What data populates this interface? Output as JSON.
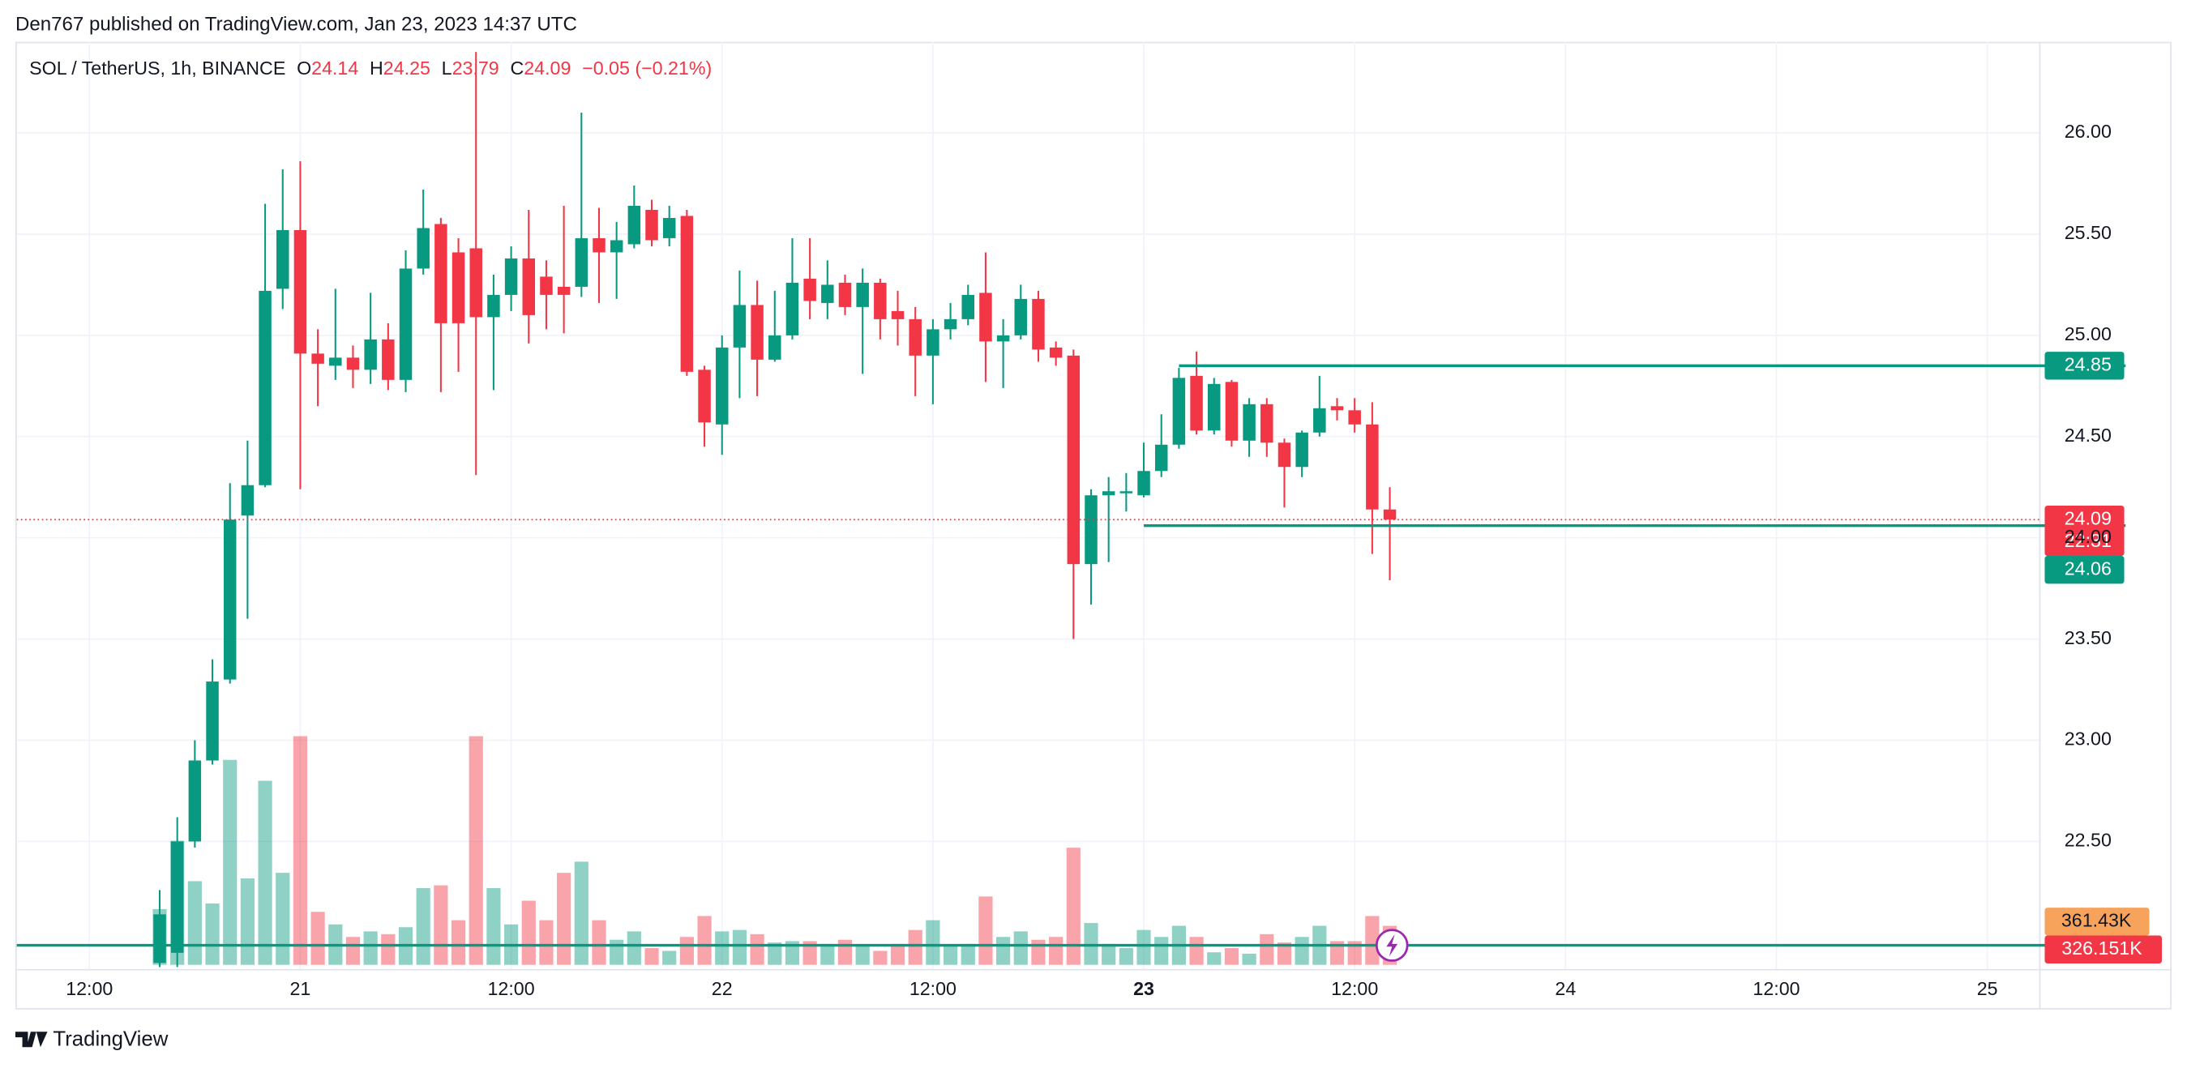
{
  "header": "Den767 published on TradingView.com, Jan 23, 2023 14:37 UTC",
  "footer": "TradingView",
  "chart_data": {
    "type": "candlestick",
    "title": "SOL / TetherUS, 1h, BINANCE",
    "ohlc_labels": [
      "O",
      "H",
      "L",
      "C"
    ],
    "change": "−0.05 (−0.21%)",
    "countdown": "22:31",
    "up_color": "#089981",
    "down_color": "#f23645",
    "grid": true,
    "x": [
      "2023-01-20T16:00",
      "2023-01-20T17:00",
      "2023-01-20T18:00",
      "2023-01-20T19:00",
      "2023-01-20T20:00",
      "2023-01-20T21:00",
      "2023-01-20T22:00",
      "2023-01-20T23:00",
      "2023-01-21T00:00",
      "2023-01-21T01:00",
      "2023-01-21T02:00",
      "2023-01-21T03:00",
      "2023-01-21T04:00",
      "2023-01-21T05:00",
      "2023-01-21T06:00",
      "2023-01-21T07:00",
      "2023-01-21T08:00",
      "2023-01-21T09:00",
      "2023-01-21T10:00",
      "2023-01-21T11:00",
      "2023-01-21T12:00",
      "2023-01-21T13:00",
      "2023-01-21T14:00",
      "2023-01-21T15:00",
      "2023-01-21T16:00",
      "2023-01-21T17:00",
      "2023-01-21T18:00",
      "2023-01-21T19:00",
      "2023-01-21T20:00",
      "2023-01-21T21:00",
      "2023-01-21T22:00",
      "2023-01-21T23:00",
      "2023-01-22T00:00",
      "2023-01-22T01:00",
      "2023-01-22T02:00",
      "2023-01-22T03:00",
      "2023-01-22T04:00",
      "2023-01-22T05:00",
      "2023-01-22T06:00",
      "2023-01-22T07:00",
      "2023-01-22T08:00",
      "2023-01-22T09:00",
      "2023-01-22T10:00",
      "2023-01-22T11:00",
      "2023-01-22T12:00",
      "2023-01-22T13:00",
      "2023-01-22T14:00",
      "2023-01-22T15:00",
      "2023-01-22T16:00",
      "2023-01-22T17:00",
      "2023-01-22T18:00",
      "2023-01-22T19:00",
      "2023-01-22T20:00",
      "2023-01-22T21:00",
      "2023-01-22T22:00",
      "2023-01-22T23:00",
      "2023-01-23T00:00",
      "2023-01-23T01:00",
      "2023-01-23T02:00",
      "2023-01-23T03:00",
      "2023-01-23T04:00",
      "2023-01-23T05:00",
      "2023-01-23T06:00",
      "2023-01-23T07:00",
      "2023-01-23T08:00",
      "2023-01-23T09:00",
      "2023-01-23T10:00",
      "2023-01-23T11:00",
      "2023-01-23T12:00",
      "2023-01-23T13:00",
      "2023-01-23T14:00"
    ],
    "open": [
      21.9,
      21.95,
      22.5,
      22.9,
      23.3,
      24.11,
      24.26,
      25.23,
      25.52,
      24.91,
      24.85,
      24.89,
      24.83,
      24.98,
      24.78,
      25.33,
      25.55,
      25.41,
      25.43,
      25.09,
      25.2,
      25.38,
      25.29,
      25.24,
      25.24,
      25.48,
      25.41,
      25.45,
      25.62,
      25.48,
      25.59,
      24.83,
      24.56,
      24.94,
      25.15,
      24.88,
      25.0,
      25.28,
      25.16,
      25.26,
      25.14,
      25.26,
      25.12,
      25.08,
      24.9,
      25.03,
      25.08,
      25.21,
      24.97,
      25.0,
      25.18,
      24.94,
      24.9,
      23.87,
      24.21,
      24.22,
      24.21,
      24.33,
      24.46,
      24.8,
      24.53,
      24.77,
      24.48,
      24.66,
      24.47,
      24.35,
      24.52,
      24.65,
      24.63,
      24.56,
      24.14
    ],
    "high": [
      22.26,
      22.62,
      23.0,
      23.4,
      24.27,
      24.48,
      25.65,
      25.82,
      25.86,
      25.03,
      25.23,
      24.95,
      25.21,
      25.06,
      25.42,
      25.72,
      25.58,
      25.48,
      26.4,
      25.3,
      25.44,
      25.62,
      25.37,
      25.64,
      26.1,
      25.63,
      25.56,
      25.74,
      25.67,
      25.64,
      25.62,
      24.85,
      25.0,
      25.32,
      25.27,
      25.22,
      25.48,
      25.48,
      25.37,
      25.3,
      25.33,
      25.28,
      25.22,
      25.14,
      25.08,
      25.16,
      25.25,
      25.41,
      25.08,
      25.25,
      25.22,
      24.97,
      24.93,
      24.24,
      24.3,
      24.32,
      24.47,
      24.61,
      24.84,
      24.92,
      24.79,
      24.78,
      24.69,
      24.69,
      24.49,
      24.53,
      24.8,
      24.69,
      24.69,
      24.67,
      24.25
    ],
    "low": [
      21.88,
      21.88,
      22.47,
      22.88,
      23.28,
      23.6,
      24.25,
      25.13,
      24.24,
      24.65,
      24.78,
      24.74,
      24.76,
      24.73,
      24.72,
      25.3,
      24.72,
      24.82,
      24.31,
      24.73,
      25.12,
      24.96,
      25.03,
      25.01,
      25.19,
      25.16,
      25.18,
      25.43,
      25.44,
      25.44,
      24.8,
      24.45,
      24.41,
      24.69,
      24.7,
      24.87,
      24.98,
      25.08,
      25.08,
      25.1,
      24.81,
      24.98,
      24.95,
      24.7,
      24.66,
      24.98,
      25.05,
      24.77,
      24.74,
      24.98,
      24.87,
      24.85,
      23.5,
      23.67,
      23.88,
      24.13,
      24.2,
      24.3,
      24.44,
      24.51,
      24.51,
      24.45,
      24.4,
      24.4,
      24.15,
      24.3,
      24.5,
      24.58,
      24.52,
      23.92,
      23.79
    ],
    "close": [
      22.14,
      22.5,
      22.9,
      23.29,
      24.09,
      24.26,
      25.22,
      25.52,
      24.91,
      24.86,
      24.89,
      24.83,
      24.98,
      24.78,
      25.33,
      25.53,
      25.06,
      25.06,
      25.09,
      25.2,
      25.38,
      25.1,
      25.2,
      25.2,
      25.48,
      25.41,
      25.47,
      25.64,
      25.47,
      25.58,
      24.82,
      24.57,
      24.94,
      25.15,
      24.88,
      25.0,
      25.26,
      25.17,
      25.25,
      25.14,
      25.26,
      25.08,
      25.08,
      24.9,
      25.03,
      25.08,
      25.2,
      24.97,
      25.0,
      25.18,
      24.93,
      24.89,
      23.87,
      24.21,
      24.23,
      24.23,
      24.33,
      24.46,
      24.79,
      24.53,
      24.76,
      24.48,
      24.66,
      24.47,
      24.35,
      24.52,
      24.64,
      24.63,
      24.56,
      24.14,
      24.09
    ],
    "volume": [
      466400,
      1037700,
      699600,
      513000,
      1714000,
      722900,
      1539100,
      769600,
      1912200,
      443100,
      338100,
      233200,
      279800,
      256500,
      314800,
      641300,
      664600,
      373100,
      1912200,
      641300,
      338100,
      536400,
      373100,
      769600,
      862800,
      373100,
      209900,
      279800,
      139900,
      116600,
      233200,
      408100,
      279800,
      291500,
      256500,
      186600,
      198200,
      198200,
      174900,
      209900,
      163200,
      116600,
      174900,
      291500,
      373100,
      163200,
      174900,
      571300,
      233200,
      279800,
      209900,
      233200,
      979400,
      349800,
      174900,
      139900,
      291500,
      233200,
      326500,
      233200,
      104900,
      139900,
      93300,
      256500,
      186600,
      233200,
      326500,
      198200,
      198200,
      408100,
      326151
    ],
    "volume_last_label": {
      "value": 326151,
      "label": "326.151K"
    },
    "volume_ma": {
      "value": 361430,
      "label": "361.43K",
      "color": "#f7a35c"
    },
    "vlim": [
      0,
      7719000
    ],
    "ylim": [
      21.87,
      26.45
    ],
    "yticks": [
      {
        "value": 22.5,
        "label": "22.50"
      },
      {
        "value": 23,
        "label": "23.00"
      },
      {
        "value": 23.5,
        "label": "23.50"
      },
      {
        "value": 24,
        "label": "24.00"
      },
      {
        "value": 24.5,
        "label": "24.50"
      },
      {
        "value": 25,
        "label": "25.00"
      },
      {
        "value": 25.5,
        "label": "25.50"
      },
      {
        "value": 26,
        "label": "26.00"
      }
    ],
    "xlim": [
      "2023-01-20T07:52",
      "2023-01-25T02:57"
    ],
    "xticks": [
      {
        "value": "2023-01-20T12:00",
        "label": "12:00"
      },
      {
        "value": "2023-01-21T00:00",
        "label": "21"
      },
      {
        "value": "2023-01-21T12:00",
        "label": "12:00"
      },
      {
        "value": "2023-01-22T00:00",
        "label": "22"
      },
      {
        "value": "2023-01-22T12:00",
        "label": "12:00"
      },
      {
        "value": "2023-01-23T00:00",
        "label": "23"
      },
      {
        "value": "2023-01-23T12:00",
        "label": "12:00"
      },
      {
        "value": "2023-01-24T00:00",
        "label": "24"
      },
      {
        "value": "2023-01-24T12:00",
        "label": "12:00"
      },
      {
        "value": "2023-01-25T00:00",
        "label": "25"
      }
    ],
    "horizontal_lines": [
      {
        "value": 24.85,
        "start": "2023-01-23T02:00",
        "color": "#089981"
      },
      {
        "value": 24.06,
        "start": "2023-01-23T00:00",
        "color": "#089981"
      }
    ]
  }
}
